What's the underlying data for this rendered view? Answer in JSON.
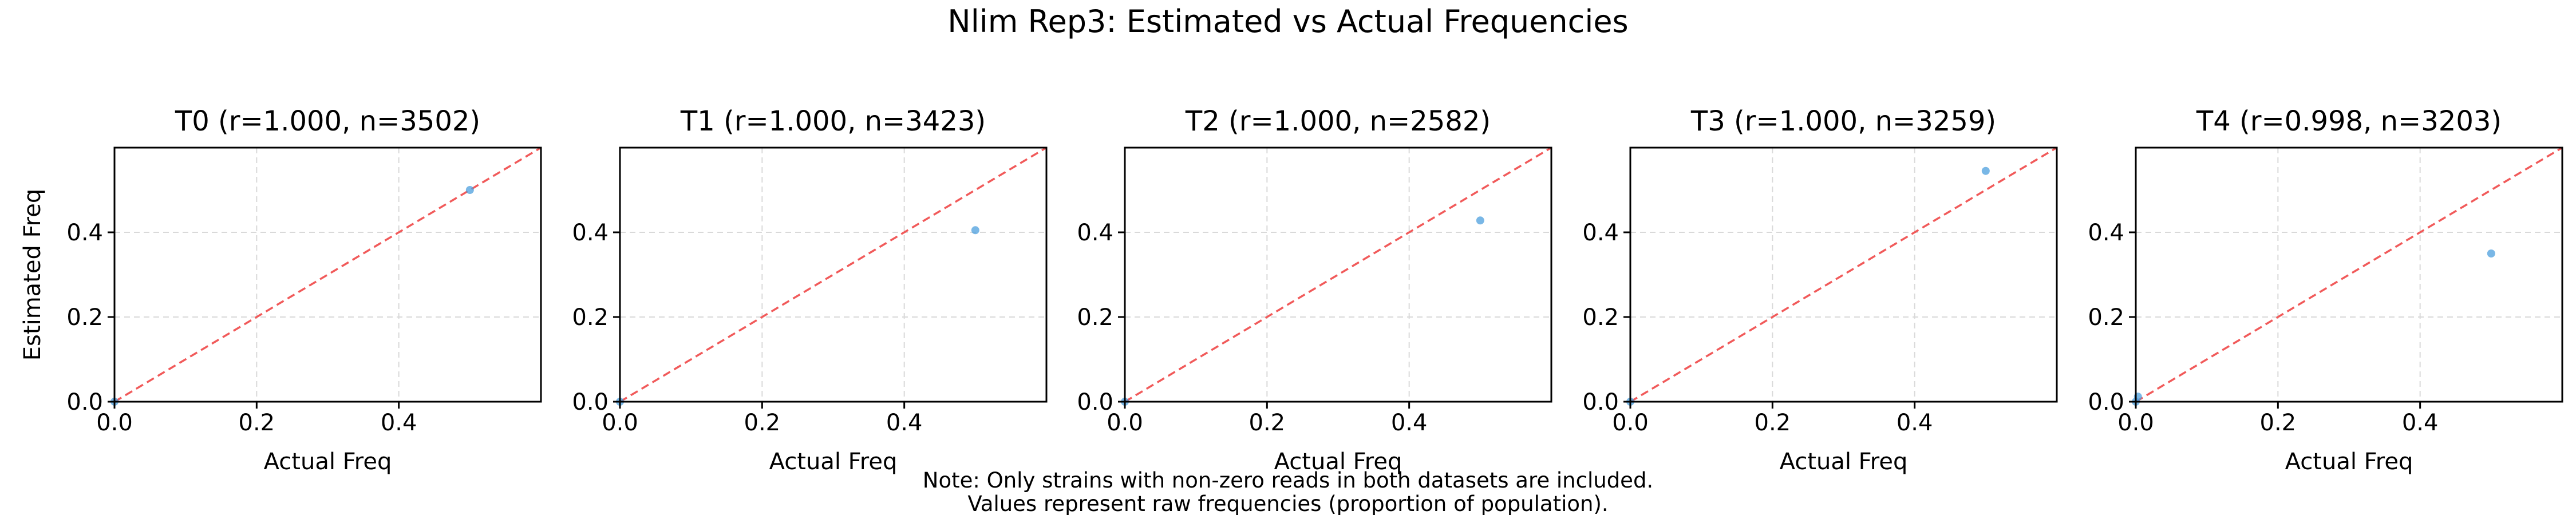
{
  "figure": {
    "suptitle": "Nlim Rep3: Estimated vs Actual Frequencies",
    "note_lines": [
      "Note: Only strains with non-zero reads in both datasets are included.",
      "Values represent raw frequencies (proportion of population)."
    ]
  },
  "colors": {
    "points": "#4c9fde",
    "diagonal": "#f15a5a",
    "axes": "#000000",
    "grid": "#d9d9d9",
    "background": "#ffffff"
  },
  "chart_data": [
    {
      "type": "scatter",
      "title": "T0 (r=1.000, n=3502)",
      "xlabel": "Actual Freq",
      "ylabel": "Estimated Freq",
      "xlim": [
        0,
        0.6
      ],
      "ylim": [
        0,
        0.6
      ],
      "xticks": [
        0.0,
        0.2,
        0.4
      ],
      "yticks": [
        0.0,
        0.2,
        0.4
      ],
      "grid": true,
      "reference_line": "y = x",
      "points": [
        {
          "x": 0.5,
          "y": 0.5
        },
        {
          "x": 0.0,
          "y": 0.0
        }
      ]
    },
    {
      "type": "scatter",
      "title": "T1 (r=1.000, n=3423)",
      "xlabel": "Actual Freq",
      "ylabel": "",
      "xlim": [
        0,
        0.6
      ],
      "ylim": [
        0,
        0.6
      ],
      "xticks": [
        0.0,
        0.2,
        0.4
      ],
      "yticks": [
        0.0,
        0.2,
        0.4
      ],
      "grid": true,
      "reference_line": "y = x",
      "points": [
        {
          "x": 0.5,
          "y": 0.405
        },
        {
          "x": 0.0,
          "y": 0.0
        }
      ]
    },
    {
      "type": "scatter",
      "title": "T2 (r=1.000, n=2582)",
      "xlabel": "Actual Freq",
      "ylabel": "",
      "xlim": [
        0,
        0.6
      ],
      "ylim": [
        0,
        0.6
      ],
      "xticks": [
        0.0,
        0.2,
        0.4
      ],
      "yticks": [
        0.0,
        0.2,
        0.4
      ],
      "grid": true,
      "reference_line": "y = x",
      "points": [
        {
          "x": 0.5,
          "y": 0.428
        },
        {
          "x": 0.0,
          "y": 0.0
        }
      ]
    },
    {
      "type": "scatter",
      "title": "T3 (r=1.000, n=3259)",
      "xlabel": "Actual Freq",
      "ylabel": "",
      "xlim": [
        0,
        0.6
      ],
      "ylim": [
        0,
        0.6
      ],
      "xticks": [
        0.0,
        0.2,
        0.4
      ],
      "yticks": [
        0.0,
        0.2,
        0.4
      ],
      "grid": true,
      "reference_line": "y = x",
      "points": [
        {
          "x": 0.5,
          "y": 0.545
        },
        {
          "x": 0.0,
          "y": 0.0
        }
      ]
    },
    {
      "type": "scatter",
      "title": "T4 (r=0.998, n=3203)",
      "xlabel": "Actual Freq",
      "ylabel": "",
      "xlim": [
        0,
        0.6
      ],
      "ylim": [
        0,
        0.6
      ],
      "xticks": [
        0.0,
        0.2,
        0.4
      ],
      "yticks": [
        0.0,
        0.2,
        0.4
      ],
      "grid": true,
      "reference_line": "y = x",
      "points": [
        {
          "x": 0.5,
          "y": 0.35
        },
        {
          "x": 0.003,
          "y": 0.012
        },
        {
          "x": 0.0,
          "y": 0.0
        }
      ]
    }
  ]
}
